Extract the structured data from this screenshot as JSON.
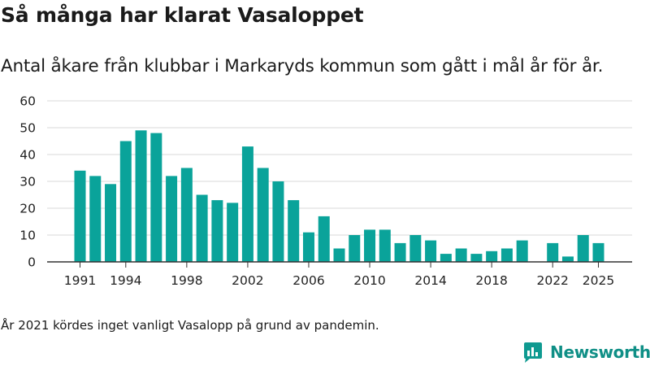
{
  "title": "Så många har klarat Vasaloppet",
  "subtitle": "Antal åkare från klubbar i Markaryds kommun som gått i mål år för år.",
  "footnote": "År 2021 kördes inget vanligt Vasalopp på grund av pandemin.",
  "brand": {
    "name": "Newsworthy",
    "color": "#0f9a91",
    "logo_icon": "newsworthy-logo-icon"
  },
  "chart_data": {
    "type": "bar",
    "title": "Så många har klarat Vasaloppet",
    "xlabel": "",
    "ylabel": "",
    "ylim": [
      0,
      60
    ],
    "yticks": [
      0,
      10,
      20,
      30,
      40,
      50,
      60
    ],
    "xticks": [
      1991,
      1994,
      1998,
      2002,
      2006,
      2010,
      2014,
      2018,
      2022,
      2025
    ],
    "grid": true,
    "bar_color": "#0aa39a",
    "categories": [
      1991,
      1992,
      1993,
      1994,
      1995,
      1996,
      1997,
      1998,
      1999,
      2000,
      2001,
      2002,
      2003,
      2004,
      2005,
      2006,
      2007,
      2008,
      2009,
      2010,
      2011,
      2012,
      2013,
      2014,
      2015,
      2016,
      2017,
      2018,
      2019,
      2020,
      2021,
      2022,
      2023,
      2024,
      2025
    ],
    "values": [
      34,
      32,
      29,
      45,
      49,
      48,
      32,
      35,
      25,
      23,
      22,
      43,
      35,
      30,
      23,
      11,
      17,
      5,
      10,
      12,
      12,
      7,
      10,
      8,
      3,
      5,
      3,
      4,
      5,
      8,
      null,
      7,
      2,
      10,
      7
    ]
  }
}
